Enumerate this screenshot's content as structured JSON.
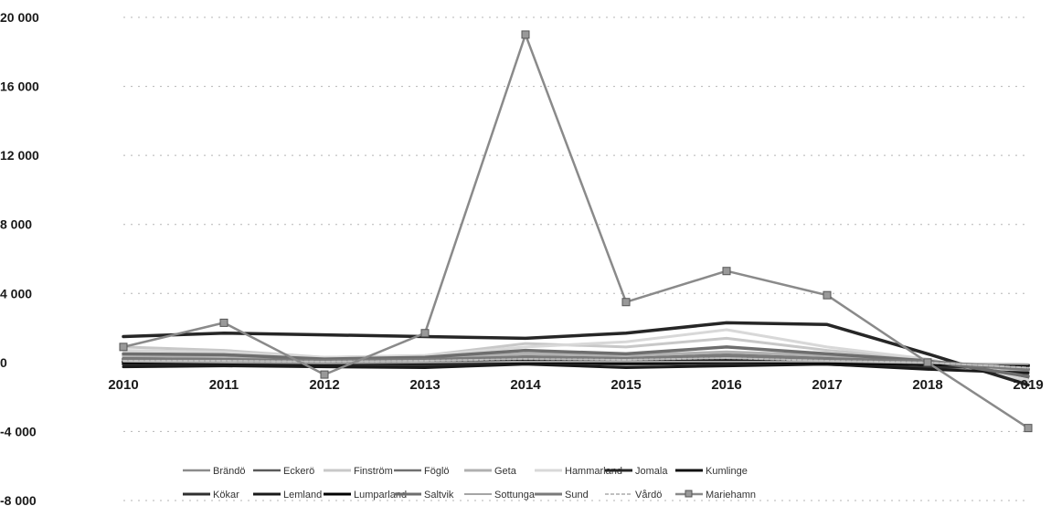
{
  "chart_data": {
    "type": "line",
    "title": "",
    "xlabel": "",
    "ylabel": "",
    "categories": [
      "2010",
      "2011",
      "2012",
      "2013",
      "2014",
      "2015",
      "2016",
      "2017",
      "2018",
      "2019"
    ],
    "ylim": [
      -8000,
      20000
    ],
    "y_ticks": [
      "-8 000",
      "-4 000",
      "0",
      "4 000",
      "8 000",
      "12 000",
      "16 000",
      "20 000"
    ],
    "y_tick_values": [
      -8000,
      -4000,
      0,
      4000,
      8000,
      12000,
      16000,
      20000
    ],
    "grid": true,
    "legend_position": "bottom",
    "series": [
      {
        "name": "Brändö",
        "values": [
          200,
          150,
          100,
          100,
          200,
          150,
          200,
          150,
          0,
          -700
        ],
        "color": "#8c8c8c",
        "width": 2.5,
        "marker": false
      },
      {
        "name": "Eckerö",
        "values": [
          300,
          250,
          150,
          200,
          400,
          300,
          500,
          300,
          50,
          -900
        ],
        "color": "#5a5a5a",
        "width": 2.5,
        "marker": false
      },
      {
        "name": "Finström",
        "values": [
          900,
          700,
          300,
          400,
          1100,
          900,
          1400,
          700,
          200,
          -1100
        ],
        "color": "#c8c8c8",
        "width": 3,
        "marker": false
      },
      {
        "name": "Föglö",
        "values": [
          100,
          50,
          0,
          50,
          150,
          100,
          150,
          100,
          -50,
          -300
        ],
        "color": "#707070",
        "width": 2.5,
        "marker": false
      },
      {
        "name": "Geta",
        "values": [
          400,
          350,
          200,
          250,
          500,
          400,
          600,
          400,
          100,
          -500
        ],
        "color": "#b0b0b0",
        "width": 3.5,
        "marker": false
      },
      {
        "name": "Hammarland",
        "values": [
          700,
          600,
          300,
          400,
          900,
          1200,
          1900,
          900,
          200,
          -1000
        ],
        "color": "#d8d8d8",
        "width": 3,
        "marker": false
      },
      {
        "name": "Jomala",
        "values": [
          1500,
          1700,
          1600,
          1500,
          1400,
          1700,
          2300,
          2200,
          500,
          -1300
        ],
        "color": "#262626",
        "width": 3.5,
        "marker": false
      },
      {
        "name": "Kumlinge",
        "values": [
          50,
          50,
          0,
          50,
          100,
          50,
          100,
          50,
          -100,
          -200
        ],
        "color": "#111111",
        "width": 3.5,
        "marker": false
      },
      {
        "name": "Kökar",
        "values": [
          -100,
          -150,
          -200,
          -150,
          0,
          -100,
          -50,
          -100,
          -300,
          -200
        ],
        "color": "#303030",
        "width": 3.5,
        "marker": false
      },
      {
        "name": "Lemland",
        "values": [
          -250,
          -200,
          -250,
          -300,
          -100,
          -300,
          -200,
          -100,
          -400,
          -600
        ],
        "color": "#1a1a1a",
        "width": 3,
        "marker": false
      },
      {
        "name": "Lumparland",
        "values": [
          0,
          0,
          -50,
          0,
          50,
          0,
          50,
          0,
          -100,
          -150
        ],
        "color": "#000000",
        "width": 3.5,
        "marker": false
      },
      {
        "name": "Saltvik",
        "values": [
          500,
          450,
          200,
          300,
          700,
          500,
          900,
          500,
          100,
          -800
        ],
        "color": "#6e6e6e",
        "width": 3.5,
        "marker": false
      },
      {
        "name": "Sottunga",
        "values": [
          50,
          0,
          -50,
          0,
          50,
          50,
          50,
          50,
          -50,
          -100
        ],
        "color": "#a5a5a5",
        "width": 2,
        "marker": false
      },
      {
        "name": "Sund",
        "values": [
          200,
          150,
          100,
          150,
          300,
          200,
          400,
          200,
          50,
          -400
        ],
        "color": "#7a7a7a",
        "width": 4,
        "marker": false
      },
      {
        "name": "Vårdö",
        "values": [
          100,
          100,
          50,
          100,
          200,
          150,
          250,
          100,
          0,
          -300
        ],
        "color": "#c0c0c0",
        "width": 2,
        "marker": false,
        "dashed": true
      },
      {
        "name": "Mariehamn",
        "values": [
          900,
          2300,
          -700,
          1700,
          19000,
          3500,
          5300,
          3900,
          0,
          -3800
        ],
        "color": "#8a8a8a",
        "width": 2.5,
        "marker": true
      }
    ]
  }
}
